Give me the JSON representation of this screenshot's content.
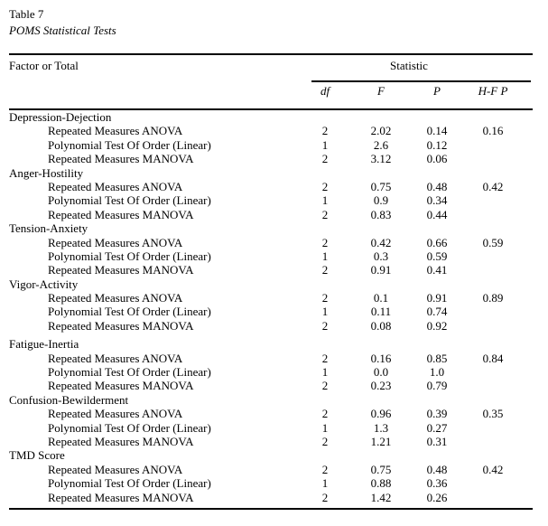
{
  "title": "Table 7",
  "subtitle": "POMS Statistical Tests",
  "table": {
    "factor_header": "Factor or Total",
    "statistic_header": "Statistic",
    "columns": [
      "df",
      "F",
      "P",
      "H-F P"
    ],
    "sections": [
      {
        "name": "Depression-Dejection",
        "rows": [
          {
            "label": "Repeated Measures ANOVA",
            "values": [
              "2",
              "2.02",
              "0.14",
              "0.16"
            ]
          },
          {
            "label": "Polynomial Test Of Order (Linear)",
            "values": [
              "1",
              "2.6",
              "0.12",
              ""
            ]
          },
          {
            "label": "Repeated Measures MANOVA",
            "values": [
              "2",
              "3.12",
              "0.06",
              ""
            ]
          }
        ]
      },
      {
        "name": "Anger-Hostility",
        "rows": [
          {
            "label": "Repeated Measures ANOVA",
            "values": [
              "2",
              "0.75",
              "0.48",
              "0.42"
            ]
          },
          {
            "label": "Polynomial Test Of Order (Linear)",
            "values": [
              "1",
              "0.9",
              "0.34",
              ""
            ]
          },
          {
            "label": "Repeated Measures MANOVA",
            "values": [
              "2",
              "0.83",
              "0.44",
              ""
            ]
          }
        ]
      },
      {
        "name": "Tension-Anxiety",
        "rows": [
          {
            "label": "Repeated Measures ANOVA",
            "values": [
              "2",
              "0.42",
              "0.66",
              "0.59"
            ]
          },
          {
            "label": "Polynomial Test Of Order (Linear)",
            "values": [
              "1",
              "0.3",
              "0.59",
              ""
            ]
          },
          {
            "label": "Repeated Measures MANOVA",
            "values": [
              "2",
              "0.91",
              "0.41",
              ""
            ]
          }
        ]
      },
      {
        "name": "Vigor-Activity",
        "rows": [
          {
            "label": "Repeated Measures ANOVA",
            "values": [
              "2",
              "0.1",
              "0.91",
              "0.89"
            ]
          },
          {
            "label": "Polynomial Test Of Order (Linear)",
            "values": [
              "1",
              "0.11",
              "0.74",
              ""
            ]
          },
          {
            "label": "Repeated Measures MANOVA",
            "values": [
              "2",
              "0.08",
              "0.92",
              ""
            ]
          }
        ]
      },
      {
        "name": "Fatigue-Inertia",
        "rows": [
          {
            "label": "Repeated Measures ANOVA",
            "values": [
              "2",
              "0.16",
              "0.85",
              "0.84"
            ]
          },
          {
            "label": "Polynomial Test Of Order (Linear)",
            "values": [
              "1",
              "0.0",
              "1.0",
              ""
            ]
          },
          {
            "label": "Repeated Measures MANOVA",
            "values": [
              "2",
              "0.23",
              "0.79",
              ""
            ]
          }
        ]
      },
      {
        "name": "Confusion-Bewilderment",
        "rows": [
          {
            "label": "Repeated Measures ANOVA",
            "values": [
              "2",
              "0.96",
              "0.39",
              "0.35"
            ]
          },
          {
            "label": "Polynomial Test Of Order (Linear)",
            "values": [
              "1",
              "1.3",
              "0.27",
              ""
            ]
          },
          {
            "label": "Repeated Measures MANOVA",
            "values": [
              "2",
              "1.21",
              "0.31",
              ""
            ]
          }
        ]
      },
      {
        "name": "TMD Score",
        "rows": [
          {
            "label": "Repeated Measures ANOVA",
            "values": [
              "2",
              "0.75",
              "0.48",
              "0.42"
            ]
          },
          {
            "label": "Polynomial Test Of Order (Linear)",
            "values": [
              "1",
              "0.88",
              "0.36",
              ""
            ]
          },
          {
            "label": "Repeated Measures MANOVA",
            "values": [
              "2",
              "1.42",
              "0.26",
              ""
            ]
          }
        ]
      }
    ]
  }
}
